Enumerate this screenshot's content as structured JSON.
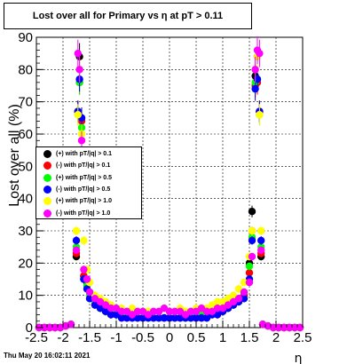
{
  "title": "Lost over all for Primary vs   η at pT > 0.11",
  "footer": "Thu May 20 16:02:11 2021",
  "chart_data": {
    "type": "scatter",
    "title": "Lost over all for Primary vs   η at pT > 0.11",
    "xlabel": "η",
    "ylabel": "Lost over all (%)",
    "xlim": [
      -2.5,
      2.5
    ],
    "ylim": [
      0,
      90
    ],
    "x_ticks": [
      "-2.5",
      "-2",
      "-1.5",
      "-1",
      "-0.5",
      "0",
      "0.5",
      "1",
      "1.5",
      "2",
      "2.5"
    ],
    "y_ticks": [
      "0",
      "10",
      "20",
      "30",
      "40",
      "50",
      "60",
      "70",
      "80",
      "90"
    ],
    "grid": true,
    "legend_position": "center-left",
    "x": [
      -2.45,
      -2.35,
      -2.25,
      -2.15,
      -2.05,
      -1.95,
      -1.85,
      -1.75,
      -1.72,
      -1.69,
      -1.65,
      -1.61,
      -1.55,
      -1.5,
      -1.4,
      -1.3,
      -1.2,
      -1.1,
      -1.0,
      -0.9,
      -0.8,
      -0.7,
      -0.6,
      -0.5,
      -0.4,
      -0.3,
      -0.2,
      -0.1,
      0.0,
      0.1,
      0.2,
      0.3,
      0.4,
      0.5,
      0.6,
      0.7,
      0.8,
      0.9,
      1.0,
      1.1,
      1.2,
      1.3,
      1.4,
      1.5,
      1.55,
      1.61,
      1.65,
      1.69,
      1.72,
      1.75,
      1.85,
      1.95,
      2.05,
      2.15,
      2.25,
      2.35,
      2.45
    ],
    "series": [
      {
        "name": "(+) with pT/|q| > 0.1",
        "color": "#000000",
        "values": [
          0,
          0,
          0,
          0,
          0,
          0.5,
          1,
          22,
          67,
          84,
          65,
          16,
          14,
          11,
          8,
          7,
          6,
          5,
          4,
          4,
          3,
          3,
          3,
          3,
          3,
          3,
          3,
          3,
          3,
          3,
          3,
          3,
          3,
          3,
          3,
          4,
          4,
          5,
          5,
          6,
          7,
          9,
          11,
          20,
          36,
          78,
          84,
          67,
          22,
          1,
          0.5,
          0,
          0,
          0,
          0,
          0,
          0
        ]
      },
      {
        "name": "(-) with pT/|q| > 0.1",
        "color": "#ff0000",
        "values": [
          0,
          0,
          0,
          0,
          0,
          0.5,
          1,
          23,
          67,
          76,
          64,
          16,
          13,
          10,
          7,
          6,
          5,
          4,
          4,
          3,
          3,
          3,
          3,
          3,
          3,
          3,
          3,
          3,
          3,
          3,
          3,
          3,
          3,
          3,
          3,
          3,
          4,
          4,
          5,
          6,
          7,
          8,
          10,
          17,
          30,
          75,
          76,
          67,
          23,
          1,
          0.5,
          0,
          0,
          0,
          0,
          0,
          0
        ]
      },
      {
        "name": "(+) with pT/|q| > 0.5",
        "color": "#00ff00",
        "values": [
          0,
          0,
          0,
          0,
          0,
          0.5,
          1,
          25,
          66,
          76,
          62,
          15,
          13,
          10,
          8,
          6,
          5,
          5,
          4,
          4,
          4,
          4,
          3,
          3,
          3,
          3,
          3,
          3,
          3,
          3,
          3,
          3,
          3,
          4,
          4,
          4,
          4,
          5,
          5,
          6,
          7,
          9,
          11,
          19,
          28,
          76,
          77,
          66,
          25,
          1,
          0.5,
          0,
          0,
          0,
          0,
          0,
          0
        ]
      },
      {
        "name": "(-) with pT/|q| > 0.5",
        "color": "#0000ff",
        "values": [
          0,
          0,
          0,
          0,
          0,
          0.5,
          1,
          27,
          67,
          77,
          65,
          15,
          12,
          9,
          7,
          6,
          5,
          4,
          4,
          3,
          3,
          3,
          3,
          3,
          3,
          3,
          3,
          3,
          3,
          3,
          3,
          3,
          3,
          3,
          3,
          3,
          4,
          4,
          5,
          6,
          7,
          8,
          9,
          15,
          27,
          74,
          77,
          67,
          27,
          1,
          0.5,
          0,
          0,
          0,
          0,
          0,
          0
        ]
      },
      {
        "name": "(+) with pT/|q| > 1.0",
        "color": "#ffff00",
        "values": [
          0,
          0,
          0,
          0,
          0,
          0.5,
          1,
          30,
          66,
          80,
          60,
          27,
          18,
          14,
          10,
          9,
          8,
          7,
          6,
          6,
          5,
          6,
          5,
          5,
          5,
          5,
          5,
          6,
          5,
          5,
          6,
          5,
          5,
          6,
          6,
          6,
          7,
          8,
          8,
          9,
          10,
          12,
          14,
          22,
          30,
          80,
          84,
          66,
          30,
          1,
          0.5,
          0,
          0,
          0,
          0,
          0,
          0
        ]
      },
      {
        "name": "(-) with pT/|q| > 1.0",
        "color": "#ff00ff",
        "values": [
          0,
          0,
          0,
          0,
          0,
          0.5,
          1,
          24,
          85,
          80,
          58,
          18,
          15,
          11,
          9,
          8,
          7,
          6,
          6,
          5,
          5,
          4,
          5,
          5,
          4,
          5,
          5,
          6,
          5,
          5,
          5,
          4,
          5,
          5,
          6,
          5,
          5,
          6,
          6,
          7,
          8,
          9,
          11,
          14,
          22,
          80,
          86,
          85,
          24,
          1,
          0.5,
          0,
          0,
          0,
          0,
          0,
          0
        ]
      }
    ]
  }
}
